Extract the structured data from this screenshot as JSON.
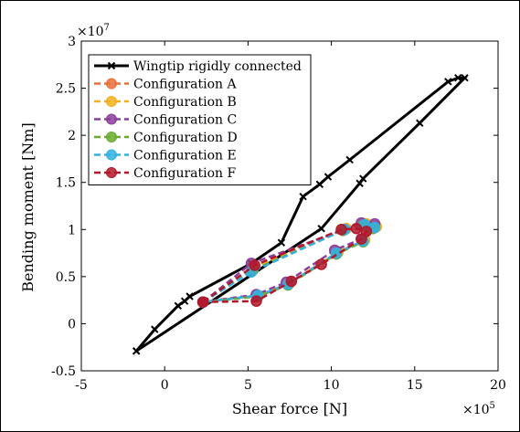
{
  "chart_data": {
    "type": "line",
    "xlabel": "Shear force [N]",
    "ylabel": "Bending moment [Nm]",
    "x_exponent_label": "×10",
    "x_exponent": "5",
    "y_exponent_label": "×10",
    "y_exponent": "7",
    "xlim": [
      -5,
      20
    ],
    "ylim": [
      -0.5,
      3
    ],
    "xticks": [
      "-5",
      "0",
      "5",
      "10",
      "15",
      "20"
    ],
    "xtick_values": [
      -5,
      0,
      5,
      10,
      15,
      20
    ],
    "yticks": [
      "-0.5",
      "0",
      "0.5",
      "1",
      "1.5",
      "2",
      "2.5",
      "3"
    ],
    "ytick_values": [
      -0.5,
      0,
      0.5,
      1,
      1.5,
      2,
      2.5,
      3
    ],
    "legend_position": "top-left",
    "series": [
      {
        "name": "Wingtip rigidly connected",
        "color": "#000000",
        "style": "solid-x",
        "x": [
          -1.7,
          -0.6,
          0.8,
          1.2,
          1.5,
          5.2,
          7.0,
          8.3,
          9.3,
          9.8,
          11.1,
          17.0,
          17.6,
          18.0,
          15.3,
          11.9,
          11.7,
          9.4,
          -1.7
        ],
        "y": [
          -0.29,
          -0.06,
          0.19,
          0.24,
          0.29,
          0.64,
          0.86,
          1.35,
          1.48,
          1.56,
          1.74,
          2.57,
          2.61,
          2.61,
          2.13,
          1.54,
          1.49,
          1.01,
          -0.29
        ]
      },
      {
        "name": "Configuration A",
        "color": "#E8703A",
        "x": [
          2.3,
          5.3,
          10.8,
          12.0,
          12.6,
          11.9,
          10.3,
          7.4,
          5.6,
          2.3
        ],
        "y": [
          0.23,
          0.6,
          1.0,
          1.05,
          1.02,
          0.88,
          0.75,
          0.42,
          0.3,
          0.23
        ]
      },
      {
        "name": "Configuration B",
        "color": "#F2B01E",
        "x": [
          2.3,
          5.3,
          10.9,
          12.1,
          12.7,
          12.0,
          10.4,
          7.5,
          5.6,
          2.3
        ],
        "y": [
          0.23,
          0.59,
          1.01,
          1.06,
          1.03,
          0.89,
          0.76,
          0.43,
          0.3,
          0.23
        ]
      },
      {
        "name": "Configuration C",
        "color": "#8B3E9A",
        "x": [
          2.3,
          5.2,
          10.8,
          11.8,
          12.6,
          11.8,
          10.2,
          7.3,
          5.5,
          2.3
        ],
        "y": [
          0.23,
          0.64,
          1.0,
          1.07,
          1.06,
          0.9,
          0.78,
          0.44,
          0.31,
          0.23
        ]
      },
      {
        "name": "Configuration D",
        "color": "#6BAA2E",
        "x": [
          2.3,
          5.3,
          10.7,
          11.9,
          12.5,
          11.9,
          10.3,
          7.4,
          5.6,
          2.3
        ],
        "y": [
          0.23,
          0.57,
          0.99,
          1.04,
          1.01,
          0.87,
          0.74,
          0.41,
          0.29,
          0.23
        ]
      },
      {
        "name": "Configuration E",
        "color": "#33B1E0",
        "x": [
          2.3,
          5.2,
          10.8,
          12.0,
          12.6,
          11.9,
          10.3,
          7.4,
          5.6,
          2.3
        ],
        "y": [
          0.23,
          0.55,
          1.0,
          1.05,
          1.02,
          0.88,
          0.75,
          0.42,
          0.3,
          0.23
        ]
      },
      {
        "name": "Configuration F",
        "color": "#B2182B",
        "x": [
          2.3,
          5.4,
          10.6,
          11.5,
          12.1,
          11.8,
          9.4,
          7.6,
          5.5,
          2.3
        ],
        "y": [
          0.23,
          0.62,
          1.0,
          1.01,
          0.98,
          0.9,
          0.63,
          0.45,
          0.24,
          0.23
        ]
      }
    ]
  }
}
